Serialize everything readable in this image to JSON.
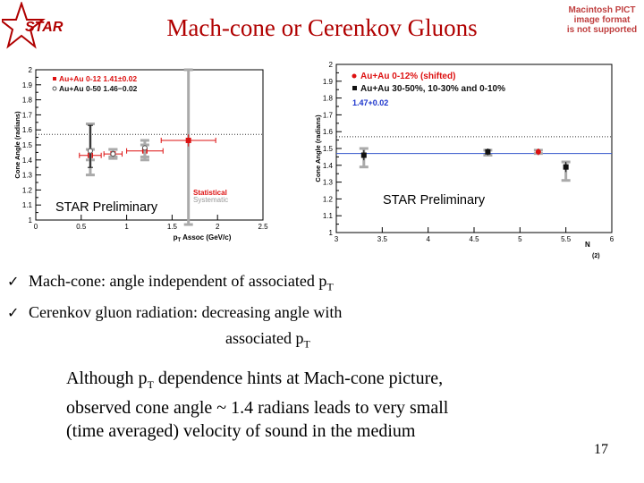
{
  "slide": {
    "title": "Mach-cone or Cerenkov Gluons",
    "logo_text": "STAR",
    "pict_notice": [
      "Macintosh PICT",
      "image format",
      "is not supported"
    ],
    "page_number": "17"
  },
  "colors": {
    "title": "#b00000",
    "red": "#dd1111",
    "black": "#111111",
    "grey": "#aaaaaa",
    "blue": "#1a33cc"
  },
  "bullets": [
    {
      "prefix": "Mach-cone:  angle independent of associated p",
      "sub": "T",
      "suffix": ""
    },
    {
      "prefix": "Cerenkov gluon radiation: decreasing angle with",
      "sub": "",
      "suffix": ""
    }
  ],
  "bullet_continuation": {
    "prefix": "associated p",
    "sub": "T"
  },
  "note": {
    "line1_prefix": "Although p",
    "line1_sub": "T",
    "line1_suffix": " dependence hints at Mach-cone picture,",
    "line2": "observed cone angle ~ 1.4 radians leads to very small",
    "line3": "(time averaged) velocity of sound in the medium"
  },
  "chart_data": [
    {
      "type": "scatter",
      "title": "",
      "xlabel": "p_T Assoc (GeV/c)",
      "xlabel_main": "p",
      "xlabel_sub": "T",
      "xlabel_rest": " Assoc (GeV/c)",
      "ylabel": "Cone Angle (radians)",
      "xlim": [
        0,
        2.5
      ],
      "ylim": [
        1.0,
        2.0
      ],
      "xticks": [
        0,
        0.5,
        1,
        1.5,
        2,
        2.5
      ],
      "xtick_labels": [
        "0",
        "0.5",
        "1",
        "1.5",
        "2",
        "2.5"
      ],
      "yticks": [
        1,
        1.1,
        1.2,
        1.3,
        1.4,
        1.5,
        1.6,
        1.7,
        1.8,
        1.9,
        2
      ],
      "ytick_labels": [
        "1",
        "1.1",
        "1.2",
        "1.3",
        "1.4",
        "1.5",
        "1.6",
        "1.7",
        "1.8",
        "1.9",
        "2"
      ],
      "reference_line": 1.57,
      "legend": [
        {
          "label": "Au+Au 0-12 1.41±0.02",
          "color": "#dd1111"
        },
        {
          "label": "Au+Au 0-50 1.46−0.02",
          "color": "#555555"
        }
      ],
      "legend_position": "top-left",
      "annotation_statistical": "Statistical",
      "annotation_systematic": "Systematic",
      "preliminary_label": "STAR Preliminary",
      "series": [
        {
          "name": "Au+Au 0-12",
          "color": "#dd1111",
          "x": [
            0.6,
            0.85,
            1.2,
            1.68
          ],
          "y": [
            1.43,
            1.44,
            1.46,
            1.53
          ],
          "xerr": [
            0.12,
            0.1,
            0.2,
            0.3
          ],
          "yerr": [
            0.04,
            0.03,
            0.03,
            0.04
          ],
          "syst_low": [
            1.4,
            1.41,
            1.42,
            0.97
          ],
          "syst_high": [
            1.47,
            1.47,
            1.5,
            2.0
          ]
        },
        {
          "name": "Au+Au 0-50",
          "color": "#777777",
          "x": [
            0.6,
            0.85,
            1.2
          ],
          "y": [
            1.46,
            1.44,
            1.48
          ],
          "yerr": [
            0.02,
            0.02,
            0.02
          ],
          "syst_low": [
            1.3,
            1.42,
            1.4
          ],
          "syst_high": [
            1.64,
            1.47,
            1.53
          ],
          "stat_low": [
            1.35
          ],
          "stat_high": [
            1.63
          ]
        }
      ]
    },
    {
      "type": "scatter",
      "title": "",
      "xlabel": "N_part / 2",
      "xlabel_main": "N",
      "ylabel": "Cone Angle (radians)",
      "xlim": [
        3,
        6
      ],
      "ylim": [
        1.0,
        2.0
      ],
      "xticks": [
        3,
        3.5,
        4,
        4.5,
        5,
        5.5,
        6
      ],
      "xtick_labels": [
        "3",
        "3.5",
        "4",
        "4.5",
        "5",
        "5.5",
        "6"
      ],
      "yticks": [
        1,
        1.1,
        1.2,
        1.3,
        1.4,
        1.5,
        1.6,
        1.7,
        1.8,
        1.9,
        2
      ],
      "ytick_labels": [
        "1",
        "1.1",
        "1.2",
        "1.3",
        "1.4",
        "1.5",
        "1.6",
        "1.7",
        "1.8",
        "1.9",
        "2"
      ],
      "reference_line": 1.57,
      "fit_line": 1.47,
      "fit_label": "1.47+0.02",
      "legend": [
        {
          "label": "Au+Au 0-12% (shifted)",
          "color": "#dd1111"
        },
        {
          "label": "Au+Au 30-50%, 10-30% and 0-10%",
          "color": "#111111"
        }
      ],
      "legend_position": "top",
      "preliminary_label": "STAR Preliminary",
      "series": [
        {
          "name": "Au+Au 0-12% (shifted)",
          "color": "#dd1111",
          "x": [
            5.2
          ],
          "y": [
            1.48
          ],
          "yerr": [
            0.02
          ],
          "syst_low": [
            1.47
          ],
          "syst_high": [
            1.49
          ]
        },
        {
          "name": "Au+Au 30-50%, 10-30% and 0-10%",
          "color": "#111111",
          "x": [
            3.3,
            4.65,
            5.5
          ],
          "y": [
            1.46,
            1.48,
            1.39
          ],
          "yerr": [
            0.03,
            0.02,
            0.03
          ],
          "syst_low": [
            1.39,
            1.46,
            1.31
          ],
          "syst_high": [
            1.5,
            1.49,
            1.42
          ]
        }
      ]
    }
  ]
}
